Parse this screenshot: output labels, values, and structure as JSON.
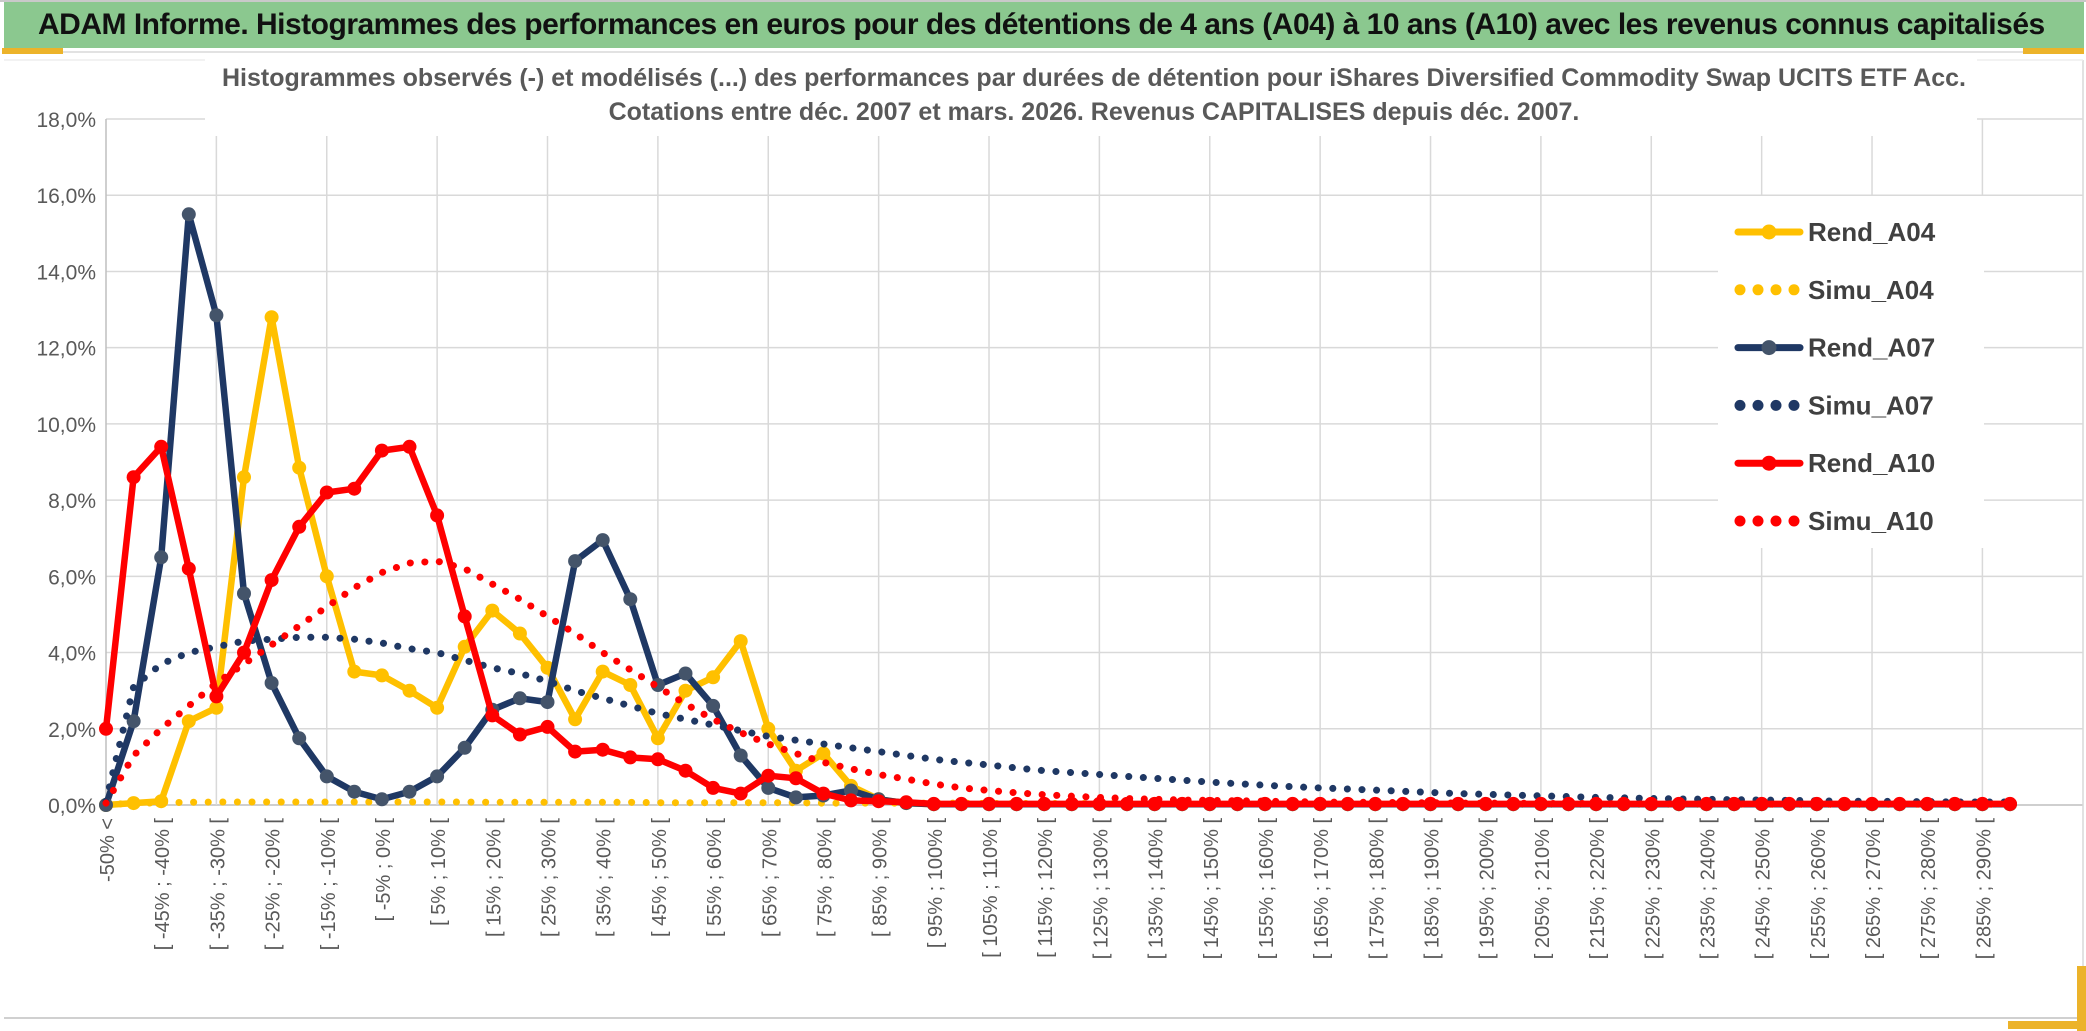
{
  "banner": {
    "title": "ADAM Informe. Histogrammes des performances en euros pour des détentions de 4 ans (A04) à 10 ans (A10) avec les revenus connus capitalisés",
    "banner_green": "#8bc88f",
    "accent_gold": "#ecb32a"
  },
  "chart": {
    "title_line1": "Histogrammes observés (-) et modélisés (...) des performances par durées de détention pour iShares Diversified Commodity Swap UCITS ETF Acc.",
    "title_line2": "Cotations entre déc. 2007 et mars. 2026. Revenus CAPITALISES depuis déc. 2007.",
    "y_tick_labels": [
      "18,0%",
      "16,0%",
      "14,0%",
      "12,0%",
      "10,0%",
      "8,0%",
      "6,0%",
      "4,0%",
      "2,0%",
      "0,0%"
    ],
    "text_color": "#595959",
    "legend_text_color": "#404040",
    "gridline_color": "#d9d9d9"
  },
  "chart_data": {
    "type": "line",
    "title": "Histogrammes observés (-) et modélisés (...) des performances par durées de détention pour iShares Diversified Commodity Swap UCITS ETF Acc.",
    "subtitle": "Cotations entre déc. 2007 et mars. 2026. Revenus CAPITALISES depuis déc. 2007.",
    "ylim": [
      0,
      18
    ],
    "y_tick_step": 2,
    "grid": true,
    "legend_position": "right",
    "n_bins": 70,
    "x_labels_every": 2,
    "x_tick_labels": [
      "-50% <",
      "[ -45% ; -40% [",
      "[ -35% ; -30% [",
      "[ -25% ; -20% [",
      "[ -15% ; -10% [",
      "[ -5% ; 0% [",
      "[ 5% ; 10% [",
      "[ 15% ; 20% [",
      "[ 25% ; 30% [",
      "[ 35% ; 40% [",
      "[ 45% ; 50% [",
      "[ 55% ; 60% [",
      "[ 65% ; 70% [",
      "[ 75% ; 80% [",
      "[ 85% ; 90% [",
      "[ 95% ; 100% [",
      "[ 105% ; 110% [",
      "[ 115% ; 120% [",
      "[ 125% ; 130% [",
      "[ 135% ; 140% [",
      "[ 145% ; 150% [",
      "[ 155% ; 160% [",
      "[ 165% ; 170% [",
      "[ 175% ; 180% [",
      "[ 185% ; 190% [",
      "[ 195% ; 200% [",
      "[ 205% ; 210% [",
      "[ 215% ; 220% [",
      "[ 225% ; 230% [",
      "[ 235% ; 240% [",
      "[ 245% ; 250% [",
      "[ 255% ; 260% [",
      "[ 265% ; 270% [",
      "[ 275% ; 280% [",
      "[ 285% ; 290% ["
    ],
    "series": [
      {
        "name": "Rend_A04",
        "style": "solid",
        "color": "#FFC000",
        "marker": "#FFC000",
        "values": [
          0,
          0.05,
          0.1,
          2.2,
          2.55,
          8.6,
          12.8,
          8.85,
          6.0,
          3.5,
          3.4,
          3.0,
          2.55,
          4.15,
          5.1,
          4.5,
          3.6,
          2.25,
          3.5,
          3.15,
          1.75,
          3.0,
          3.35,
          4.3,
          2.0,
          0.9,
          1.35,
          0.5,
          0.15,
          0.05,
          0.02,
          0.02,
          0.02,
          0.02,
          0.02,
          0.02,
          0.02,
          0.02,
          0.02,
          0.02,
          0.02,
          0.02,
          0.02,
          0.02,
          0.02,
          0.02,
          0.02,
          0.02,
          0.02,
          0.02,
          0.02,
          0.02,
          0.02,
          0.02,
          0.02,
          0.02,
          0.02,
          0.02,
          0.02,
          0.02,
          0.02,
          0.02,
          0.02,
          0.02,
          0.02,
          0.02,
          0.02,
          0.02,
          0.02,
          0.02
        ]
      },
      {
        "name": "Simu_A04",
        "style": "dotted",
        "color": "#FFC000",
        "values": [
          0.02,
          0.04,
          0.06,
          0.07,
          0.08,
          0.08,
          0.08,
          0.08,
          0.08,
          0.08,
          0.08,
          0.08,
          0.08,
          0.08,
          0.07,
          0.07,
          0.07,
          0.07,
          0.07,
          0.07,
          0.06,
          0.06,
          0.06,
          0.06,
          0.06,
          0.06,
          0.05,
          0.05,
          0.05,
          0.05,
          0.05,
          0.05,
          0.04,
          0.04,
          0.04,
          0.04,
          0.04,
          0.04,
          0.04,
          0.04,
          0.03,
          0.03,
          0.03,
          0.03,
          0.03,
          0.03,
          0.03,
          0.03,
          0.03,
          0.03,
          0.02,
          0.02,
          0.02,
          0.02,
          0.02,
          0.02,
          0.02,
          0.02,
          0.02,
          0.02,
          0.02,
          0.02,
          0.02,
          0.02,
          0.02,
          0.02,
          0.02,
          0.02,
          0.02,
          0.02
        ]
      },
      {
        "name": "Rend_A07",
        "style": "solid",
        "color": "#1F3864",
        "marker": "#44546A",
        "values": [
          0,
          2.2,
          6.5,
          15.5,
          12.85,
          5.55,
          3.2,
          1.75,
          0.75,
          0.35,
          0.15,
          0.35,
          0.75,
          1.5,
          2.5,
          2.8,
          2.7,
          6.4,
          6.95,
          5.4,
          3.15,
          3.45,
          2.6,
          1.3,
          0.45,
          0.2,
          0.25,
          0.38,
          0.15,
          0.05,
          0.02,
          0.02,
          0.02,
          0.02,
          0.02,
          0.02,
          0.02,
          0.02,
          0.02,
          0.02,
          0.02,
          0.02,
          0.02,
          0.02,
          0.02,
          0.02,
          0.02,
          0.02,
          0.02,
          0.02,
          0.02,
          0.02,
          0.02,
          0.02,
          0.02,
          0.02,
          0.02,
          0.02,
          0.02,
          0.02,
          0.02,
          0.02,
          0.02,
          0.02,
          0.02,
          0.02,
          0.02,
          0.02,
          0.02,
          0.02
        ]
      },
      {
        "name": "Simu_A07",
        "style": "dotted",
        "color": "#1F3864",
        "values": [
          0.1,
          3.1,
          3.7,
          4.0,
          4.15,
          4.3,
          4.35,
          4.4,
          4.4,
          4.35,
          4.25,
          4.1,
          4.0,
          3.8,
          3.6,
          3.45,
          3.25,
          3.0,
          2.8,
          2.6,
          2.4,
          2.25,
          2.1,
          1.95,
          1.8,
          1.7,
          1.6,
          1.5,
          1.4,
          1.3,
          1.2,
          1.12,
          1.05,
          0.97,
          0.9,
          0.85,
          0.8,
          0.75,
          0.7,
          0.65,
          0.6,
          0.56,
          0.52,
          0.48,
          0.45,
          0.42,
          0.39,
          0.36,
          0.33,
          0.3,
          0.28,
          0.26,
          0.24,
          0.22,
          0.2,
          0.19,
          0.17,
          0.16,
          0.15,
          0.14,
          0.13,
          0.12,
          0.11,
          0.1,
          0.1,
          0.09,
          0.09,
          0.08,
          0.08,
          0.08
        ]
      },
      {
        "name": "Rend_A10",
        "style": "solid",
        "color": "#FF0000",
        "marker": "#FF0000",
        "values": [
          2.0,
          8.6,
          9.4,
          6.2,
          2.85,
          4.0,
          5.9,
          7.3,
          8.2,
          8.3,
          9.3,
          9.4,
          7.6,
          4.95,
          2.35,
          1.85,
          2.05,
          1.4,
          1.45,
          1.25,
          1.2,
          0.9,
          0.45,
          0.3,
          0.77,
          0.7,
          0.3,
          0.12,
          0.1,
          0.07,
          0.03,
          0.03,
          0.03,
          0.03,
          0.03,
          0.03,
          0.03,
          0.03,
          0.03,
          0.03,
          0.03,
          0.03,
          0.03,
          0.03,
          0.03,
          0.03,
          0.03,
          0.03,
          0.03,
          0.03,
          0.03,
          0.03,
          0.03,
          0.03,
          0.03,
          0.03,
          0.03,
          0.03,
          0.03,
          0.03,
          0.03,
          0.03,
          0.03,
          0.03,
          0.03,
          0.03,
          0.03,
          0.03,
          0.03,
          0.03
        ]
      },
      {
        "name": "Simu_A10",
        "style": "dotted",
        "color": "#FF0000",
        "values": [
          0.05,
          1.3,
          2.0,
          2.6,
          3.2,
          3.7,
          4.2,
          4.7,
          5.2,
          5.7,
          6.1,
          6.35,
          6.4,
          6.2,
          5.8,
          5.4,
          4.95,
          4.5,
          4.0,
          3.55,
          3.1,
          2.65,
          2.25,
          1.9,
          1.6,
          1.35,
          1.12,
          0.95,
          0.8,
          0.68,
          0.55,
          0.45,
          0.38,
          0.32,
          0.27,
          0.23,
          0.2,
          0.17,
          0.15,
          0.13,
          0.12,
          0.11,
          0.1,
          0.09,
          0.08,
          0.07,
          0.07,
          0.06,
          0.06,
          0.05,
          0.05,
          0.05,
          0.04,
          0.04,
          0.04,
          0.03,
          0.03,
          0.03,
          0.03,
          0.03,
          0.02,
          0.02,
          0.02,
          0.02,
          0.02,
          0.02,
          0.02,
          0.02,
          0.02,
          0.02
        ]
      }
    ]
  }
}
